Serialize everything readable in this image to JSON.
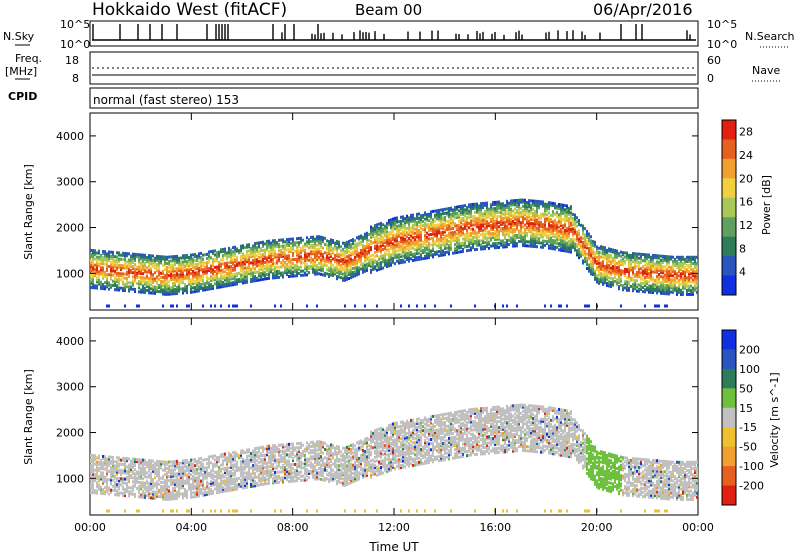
{
  "header": {
    "station": "Hokkaido West (fitACF)",
    "beam": "Beam 00",
    "date": "06/Apr/2016"
  },
  "panels": {
    "nsky": {
      "left_label": "N.Sky",
      "right_label": "N.Search",
      "tick_top_left": "10^5",
      "tick_bot_left": "10^0",
      "tick_top_right": "10^5",
      "tick_bot_right": "10^0"
    },
    "freq": {
      "left_label_1": "Freq.",
      "left_label_2": "[MHz]",
      "tick_top_left": "18",
      "tick_bot_left": "8",
      "right_label": "Nave",
      "tick_top_right": "60",
      "tick_bot_right": "0"
    },
    "cpid": {
      "label": "CPID",
      "text": "normal (fast stereo) 153"
    }
  },
  "colors": {
    "power_scale": [
      "#1030e0",
      "#2a55c0",
      "#2e7d5a",
      "#5fa060",
      "#a8c85a",
      "#f0d040",
      "#f0a030",
      "#e86020",
      "#e02010"
    ],
    "velocity_scale": [
      "#1030e0",
      "#2a55c0",
      "#2e7d5a",
      "#70c040",
      "#c0c0c0",
      "#f0c030",
      "#f0a030",
      "#e86020",
      "#e02010"
    ]
  },
  "chart_data": [
    {
      "type": "heatmap",
      "title": "",
      "xlabel": "",
      "ylabel": "Slant Range [km]",
      "ylim": [
        200,
        4500
      ],
      "x_ticks": [
        "00:00",
        "04:00",
        "08:00",
        "12:00",
        "16:00",
        "20:00",
        "00:00"
      ],
      "y_ticks": [
        "1000",
        "2000",
        "3000",
        "4000"
      ],
      "colorbar_label": "Power [dB]",
      "colorbar_ticks": [
        "4",
        "8",
        "12",
        "16",
        "20",
        "24",
        "28"
      ],
      "colorbar_range": [
        0,
        30
      ],
      "main_echo_band": {
        "x_hours": [
          0,
          1,
          2,
          3,
          4,
          5,
          6,
          7,
          8,
          9,
          10,
          11,
          12,
          13,
          14,
          15,
          16,
          17,
          18,
          19,
          20,
          21,
          22,
          23,
          24
        ],
        "center_km": [
          1100,
          1050,
          1000,
          950,
          1000,
          1100,
          1200,
          1300,
          1350,
          1400,
          1250,
          1500,
          1700,
          1800,
          1900,
          2000,
          2050,
          2100,
          2050,
          1950,
          1200,
          1050,
          1000,
          950,
          950
        ]
      }
    },
    {
      "type": "heatmap",
      "title": "",
      "xlabel": "Time UT",
      "ylabel": "Slant Range [km]",
      "ylim": [
        200,
        4500
      ],
      "x_ticks": [
        "00:00",
        "04:00",
        "08:00",
        "12:00",
        "16:00",
        "20:00",
        "00:00"
      ],
      "y_ticks": [
        "1000",
        "2000",
        "3000",
        "4000"
      ],
      "colorbar_label": "Velocity [m s^-1]",
      "colorbar_ticks": [
        "200",
        "100",
        "50",
        "15",
        "-15",
        "-50",
        "-100",
        "-200"
      ],
      "colorbar_range": [
        -250,
        250
      ]
    }
  ]
}
